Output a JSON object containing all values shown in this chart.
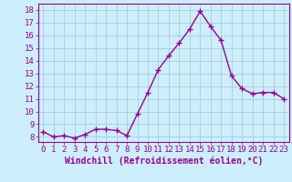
{
  "x": [
    0,
    1,
    2,
    3,
    4,
    5,
    6,
    7,
    8,
    9,
    10,
    11,
    12,
    13,
    14,
    15,
    16,
    17,
    18,
    19,
    20,
    21,
    22,
    23
  ],
  "y": [
    8.4,
    8.0,
    8.1,
    7.9,
    8.2,
    8.6,
    8.6,
    8.5,
    8.1,
    9.8,
    11.5,
    13.3,
    14.4,
    15.4,
    16.5,
    17.9,
    16.7,
    15.6,
    12.8,
    11.8,
    11.4,
    11.5,
    11.5,
    11.0
  ],
  "line_color": "#990099",
  "marker": "+",
  "marker_size": 4,
  "marker_lw": 1.0,
  "line_width": 1.0,
  "xlabel": "Windchill (Refroidissement éolien,°C)",
  "xlabel_fontsize": 7,
  "ylabel_ticks": [
    8,
    9,
    10,
    11,
    12,
    13,
    14,
    15,
    16,
    17,
    18
  ],
  "xtick_labels": [
    "0",
    "1",
    "2",
    "3",
    "4",
    "5",
    "6",
    "7",
    "8",
    "9",
    "10",
    "11",
    "12",
    "13",
    "14",
    "15",
    "16",
    "17",
    "18",
    "19",
    "20",
    "21",
    "22",
    "23"
  ],
  "ylim": [
    7.6,
    18.5
  ],
  "xlim": [
    -0.5,
    23.5
  ],
  "bg_color": "#cceeff",
  "grid_color": "#99cccc",
  "tick_color": "#990099",
  "label_color": "#990099",
  "tick_fontsize": 6.5,
  "spine_color": "#990099",
  "spine_lw": 0.8
}
